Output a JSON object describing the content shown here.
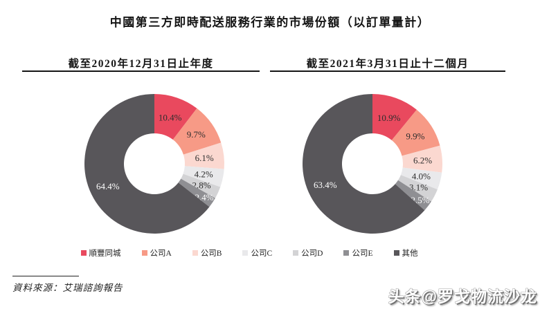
{
  "title": "中國第三方即時配送服務行業的市場份額（以訂單量計）",
  "source": "資料來源：艾瑞諮詢報告",
  "watermark": "头条@罗戈物流沙龙",
  "palette": [
    "#e9495e",
    "#f79a86",
    "#fbd8d0",
    "#e9e9eb",
    "#d3d3d5",
    "#8f8f93",
    "#58565a"
  ],
  "label_text_colors": [
    "#2d2d2d",
    "#2d2d2d",
    "#2d2d2d",
    "#2d2d2d",
    "#2d2d2d",
    "#ffffff",
    "#ffffff"
  ],
  "legend": {
    "items": [
      "順豐同城",
      "公司A",
      "公司B",
      "公司C",
      "公司D",
      "公司E",
      "其他"
    ]
  },
  "chart_data": [
    {
      "type": "pie",
      "subtype": "donut",
      "title": "截至2020年12月31日止年度",
      "categories": [
        "順豐同城",
        "公司A",
        "公司B",
        "公司C",
        "公司D",
        "公司E",
        "其他"
      ],
      "values": [
        10.4,
        9.7,
        6.1,
        4.2,
        2.8,
        2.4,
        64.4
      ],
      "labels": [
        "10.4%",
        "9.7%",
        "6.1%",
        "4.2%",
        "2.8%",
        "2.4%",
        "64.4%"
      ],
      "unit": "%",
      "start_angle": "top",
      "direction": "clockwise",
      "legend_position": "bottom"
    },
    {
      "type": "pie",
      "subtype": "donut",
      "title": "截至2021年3月31日止十二個月",
      "categories": [
        "順豐同城",
        "公司A",
        "公司B",
        "公司C",
        "公司D",
        "公司E",
        "其他"
      ],
      "values": [
        10.9,
        9.9,
        6.2,
        4.0,
        3.1,
        2.5,
        63.4
      ],
      "labels": [
        "10.9%",
        "9.9%",
        "6.2%",
        "4.0%",
        "3.1%",
        "2.5%",
        "63.4%"
      ],
      "unit": "%",
      "start_angle": "top",
      "direction": "clockwise",
      "legend_position": "bottom"
    }
  ]
}
